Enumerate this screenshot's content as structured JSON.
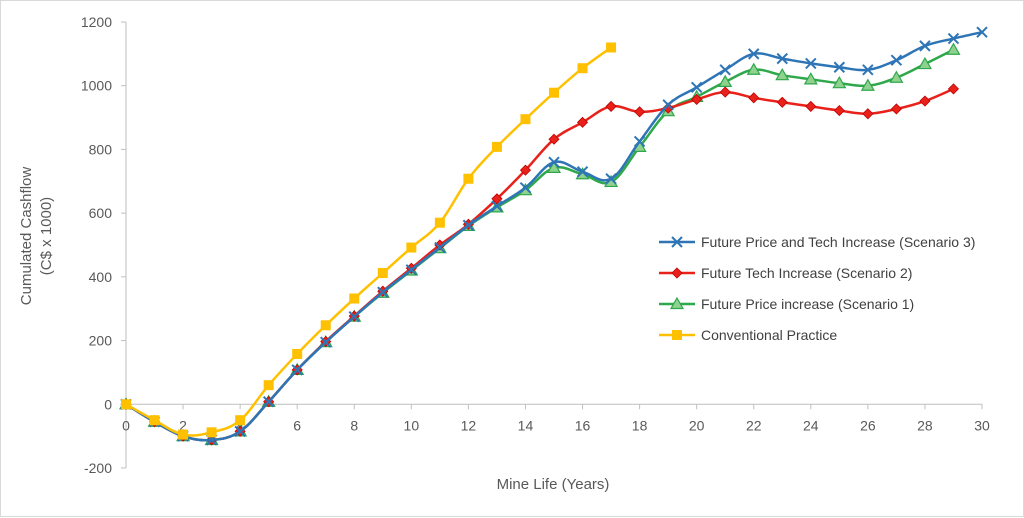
{
  "chart_data": {
    "type": "line",
    "title": "",
    "xlabel": "Mine Life (Years)",
    "ylabel_line1": "Cumulated Cashflow",
    "ylabel_line2": "(C$ x 1000)",
    "xlim": [
      0,
      30
    ],
    "ylim": [
      -200,
      1200
    ],
    "xticks": [
      0,
      2,
      4,
      6,
      8,
      10,
      12,
      14,
      16,
      18,
      20,
      22,
      24,
      26,
      28,
      30
    ],
    "yticks": [
      -200,
      0,
      200,
      400,
      600,
      800,
      1000,
      1200
    ],
    "legend_position": "right-center",
    "series": [
      {
        "name": "Future Price and Tech Increase (Scenario 3)",
        "color": "#2E75B6",
        "marker": "x",
        "x": [
          0,
          1,
          2,
          3,
          4,
          5,
          6,
          7,
          8,
          9,
          10,
          11,
          12,
          13,
          14,
          15,
          16,
          17,
          18,
          19,
          20,
          21,
          22,
          23,
          24,
          25,
          26,
          27,
          28,
          29,
          30
        ],
        "values": [
          0,
          -55,
          -100,
          -112,
          -85,
          8,
          108,
          195,
          275,
          352,
          422,
          492,
          562,
          622,
          680,
          760,
          730,
          708,
          825,
          940,
          995,
          1050,
          1100,
          1085,
          1070,
          1058,
          1050,
          1080,
          1125,
          1148,
          1168
        ]
      },
      {
        "name": "Future Tech Increase (Scenario 2)",
        "color": "#E8211B",
        "marker": "diamond",
        "x": [
          0,
          1,
          2,
          3,
          4,
          5,
          6,
          7,
          8,
          9,
          10,
          11,
          12,
          13,
          14,
          15,
          16,
          17,
          18,
          19,
          20,
          21,
          22,
          23,
          24,
          25,
          26,
          27,
          28,
          29
        ],
        "values": [
          0,
          -55,
          -100,
          -112,
          -85,
          8,
          108,
          197,
          277,
          355,
          427,
          500,
          565,
          645,
          735,
          832,
          885,
          935,
          918,
          930,
          957,
          980,
          962,
          948,
          935,
          922,
          912,
          927,
          952,
          990
        ]
      },
      {
        "name": "Future Price increase (Scenario 1)",
        "color": "#2EA84A",
        "marker": "triangle",
        "x": [
          0,
          1,
          2,
          3,
          4,
          5,
          6,
          7,
          8,
          9,
          10,
          11,
          12,
          13,
          14,
          15,
          16,
          17,
          18,
          19,
          20,
          21,
          22,
          23,
          24,
          25,
          26,
          27,
          28,
          29
        ],
        "values": [
          0,
          -55,
          -100,
          -112,
          -85,
          8,
          108,
          195,
          275,
          350,
          420,
          490,
          560,
          618,
          672,
          742,
          722,
          698,
          808,
          920,
          965,
          1012,
          1050,
          1033,
          1020,
          1008,
          1000,
          1025,
          1068,
          1113
        ]
      },
      {
        "name": "Conventional Practice",
        "color": "#FFC000",
        "marker": "square",
        "x": [
          0,
          1,
          2,
          3,
          4,
          5,
          6,
          7,
          8,
          9,
          10,
          11,
          12,
          13,
          14,
          15,
          16,
          17
        ],
        "values": [
          0,
          -50,
          -95,
          -88,
          -50,
          60,
          158,
          248,
          332,
          412,
          492,
          570,
          708,
          808,
          895,
          978,
          1055,
          1120
        ]
      }
    ]
  }
}
